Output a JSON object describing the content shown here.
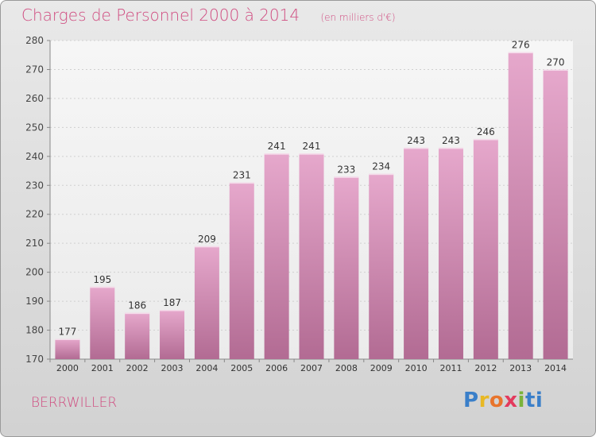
{
  "header": {
    "title": "Charges de Personnel 2000 à 2014",
    "subtitle": "(en milliers d'€)"
  },
  "footer": {
    "city": "BERRWILLER",
    "logo": [
      "P",
      "r",
      "o",
      "x",
      "i",
      "ti"
    ]
  },
  "colors": {
    "bar_top": "#e6a8cc",
    "bar_bottom": "#b26b93",
    "title": "#d04c80"
  },
  "chart_data": {
    "type": "bar",
    "title": "Charges de Personnel 2000 à 2014",
    "subtitle": "(en milliers d'€)",
    "xlabel": "",
    "ylabel": "",
    "categories": [
      "2000",
      "2001",
      "2002",
      "2003",
      "2004",
      "2005",
      "2006",
      "2007",
      "2008",
      "2009",
      "2010",
      "2011",
      "2012",
      "2013",
      "2014"
    ],
    "values": [
      177,
      195,
      186,
      187,
      209,
      231,
      241,
      241,
      233,
      234,
      243,
      243,
      246,
      276,
      270
    ],
    "ylim": [
      170,
      280
    ],
    "yticks": [
      170,
      180,
      190,
      200,
      210,
      220,
      230,
      240,
      250,
      260,
      270,
      280
    ],
    "grid": true
  }
}
